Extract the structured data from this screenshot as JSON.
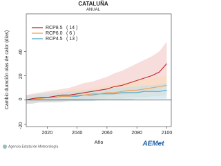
{
  "chart_data": {
    "type": "line",
    "title": "CATALUÑA",
    "subtitle": "ANUAL",
    "y_label": "Cambio duración olas de calor (días)",
    "x_label": "Año",
    "footer": "Agencia Estatal de Meteorología",
    "logo": "AEMet",
    "x": [
      2006,
      2010,
      2015,
      2020,
      2025,
      2030,
      2035,
      2040,
      2045,
      2050,
      2055,
      2060,
      2065,
      2070,
      2075,
      2080,
      2085,
      2090,
      2095,
      2100
    ],
    "xlim": [
      2006,
      2103
    ],
    "xticks": [
      2020,
      2040,
      2060,
      2080,
      2100
    ],
    "ylim": [
      -22,
      71
    ],
    "yticks": [
      -20,
      0,
      20,
      40
    ],
    "series": [
      {
        "name": "RCP8.5",
        "models": {
          "value": 14,
          "label": "( 14 )"
        },
        "color": "#c0272d",
        "band_color": "#f4c6c6",
        "values": [
          0,
          1,
          2,
          2,
          3,
          4,
          4,
          5,
          6,
          7,
          8,
          9,
          11,
          12,
          14,
          16,
          18,
          20,
          23,
          30
        ],
        "lower": [
          -3,
          -3,
          -2,
          -2,
          -1,
          -1,
          0,
          0,
          1,
          1,
          2,
          3,
          4,
          4,
          5,
          6,
          7,
          8,
          9,
          12
        ],
        "upper": [
          4,
          5,
          6,
          7,
          8,
          9,
          10,
          12,
          14,
          15,
          17,
          19,
          22,
          24,
          27,
          30,
          33,
          36,
          40,
          48
        ]
      },
      {
        "name": "RCP6.0",
        "models": {
          "value": 6,
          "label": "( 6 )"
        },
        "color": "#f0a050",
        "band_color": "#fbdcb8",
        "values": [
          0,
          1,
          1,
          2,
          2,
          3,
          3,
          4,
          4,
          5,
          5,
          6,
          6,
          7,
          8,
          8,
          9,
          10,
          11,
          12
        ],
        "lower": [
          -3,
          -3,
          -2,
          -2,
          -2,
          -1,
          -1,
          -1,
          0,
          0,
          0,
          1,
          1,
          1,
          2,
          2,
          2,
          3,
          3,
          4
        ],
        "upper": [
          4,
          4,
          5,
          6,
          6,
          7,
          8,
          9,
          9,
          10,
          11,
          12,
          13,
          14,
          15,
          16,
          17,
          18,
          19,
          20
        ]
      },
      {
        "name": "RCP4.5",
        "models": {
          "value": 13,
          "label": "( 13 )"
        },
        "color": "#4fa8c8",
        "band_color": "#bfe0ec",
        "values": [
          0,
          1,
          1,
          2,
          2,
          3,
          3,
          3,
          4,
          4,
          5,
          5,
          5,
          6,
          6,
          6,
          7,
          7,
          7,
          8
        ],
        "lower": [
          -3,
          -3,
          -2,
          -2,
          -2,
          -2,
          -1,
          -1,
          -1,
          -1,
          0,
          0,
          0,
          0,
          0,
          1,
          1,
          1,
          1,
          1
        ],
        "upper": [
          4,
          4,
          5,
          5,
          6,
          6,
          7,
          7,
          8,
          8,
          9,
          9,
          10,
          10,
          11,
          11,
          12,
          12,
          13,
          14
        ]
      }
    ]
  }
}
